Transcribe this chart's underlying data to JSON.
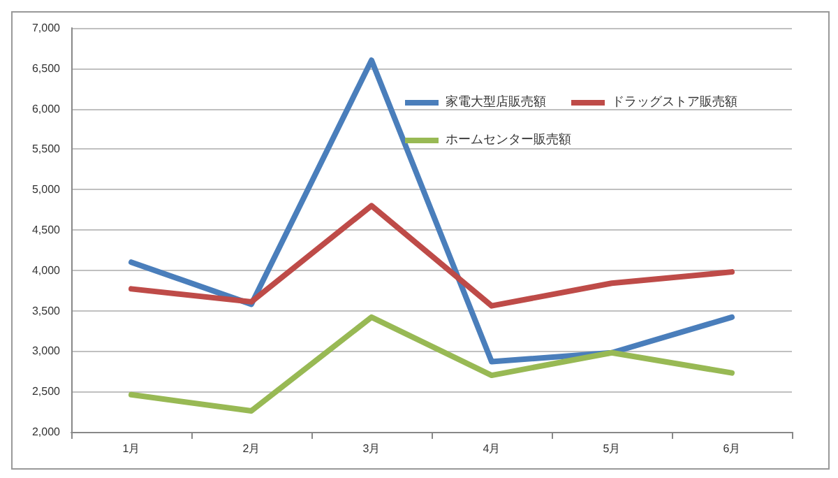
{
  "chart_data": {
    "type": "line",
    "categories": [
      "1月",
      "2月",
      "3月",
      "4月",
      "5月",
      "6月"
    ],
    "series": [
      {
        "name": "家電大型店販売額",
        "color": "#4a7ebb",
        "values": [
          4100,
          3580,
          6600,
          2870,
          2980,
          3420
        ]
      },
      {
        "name": "ドラッグストア販売額",
        "color": "#be4b48",
        "values": [
          3770,
          3610,
          4800,
          3560,
          3840,
          3980
        ]
      },
      {
        "name": "ホームセンター販売額",
        "color": "#98b954",
        "values": [
          2460,
          2260,
          3420,
          2700,
          2980,
          2730
        ]
      }
    ],
    "ylim": [
      2000,
      7000
    ],
    "yticks": [
      {
        "value": 2000,
        "label": "2,000"
      },
      {
        "value": 2500,
        "label": "2,500"
      },
      {
        "value": 3000,
        "label": "3,000"
      },
      {
        "value": 3500,
        "label": "3,500"
      },
      {
        "value": 4000,
        "label": "4,000"
      },
      {
        "value": 4500,
        "label": "4,500"
      },
      {
        "value": 5000,
        "label": "5,000"
      },
      {
        "value": 5500,
        "label": "5,500"
      },
      {
        "value": 6000,
        "label": "6,000"
      },
      {
        "value": 6500,
        "label": "6,500"
      },
      {
        "value": 7000,
        "label": "7,000"
      }
    ],
    "grid": "y",
    "legend": "top right",
    "marker": "none",
    "line_style": "solid"
  }
}
